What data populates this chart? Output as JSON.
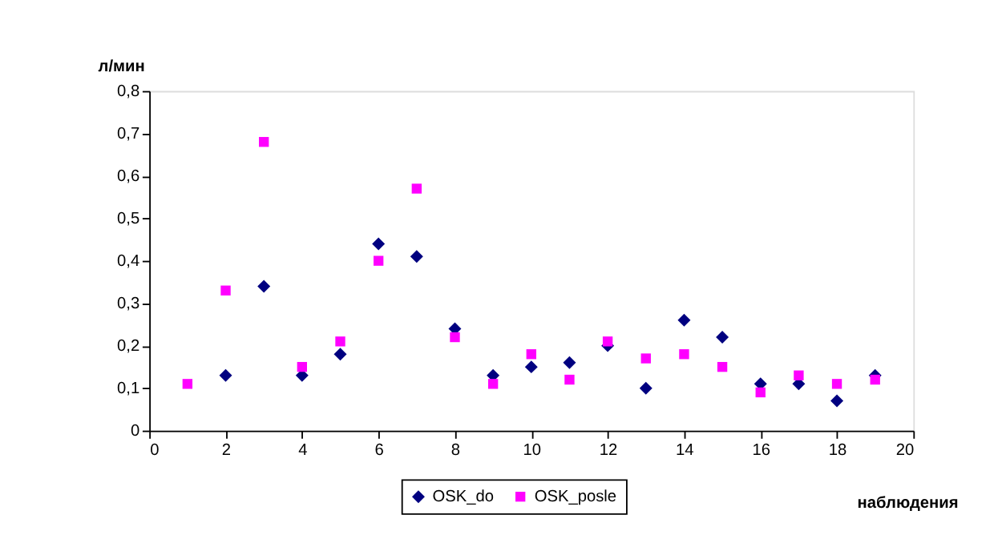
{
  "chart_data": {
    "type": "scatter",
    "xlabel": "наблюдения",
    "ylabel": "л/мин",
    "xlim": [
      0,
      20
    ],
    "xticks": [
      0,
      2,
      4,
      6,
      8,
      10,
      12,
      14,
      16,
      18,
      20
    ],
    "ylim": [
      0,
      0.8
    ],
    "yticks": [
      {
        "value": 0,
        "label": "0"
      },
      {
        "value": 0.1,
        "label": "0,1"
      },
      {
        "value": 0.2,
        "label": "0,2"
      },
      {
        "value": 0.3,
        "label": "0,3"
      },
      {
        "value": 0.4,
        "label": "0,4"
      },
      {
        "value": 0.5,
        "label": "0,5"
      },
      {
        "value": 0.6,
        "label": "0,6"
      },
      {
        "value": 0.7,
        "label": "0,7"
      },
      {
        "value": 0.8,
        "label": "0,8"
      }
    ],
    "grid": false,
    "legend": "bottom",
    "series": [
      {
        "name": "OSK_do",
        "color": "#000080",
        "marker": "diamond",
        "x": [
          2,
          3,
          4,
          5,
          6,
          7,
          8,
          9,
          10,
          11,
          12,
          13,
          14,
          15,
          16,
          17,
          18,
          19
        ],
        "values": [
          0.13,
          0.34,
          0.13,
          0.18,
          0.44,
          0.41,
          0.24,
          0.13,
          0.15,
          0.16,
          0.2,
          0.1,
          0.26,
          0.22,
          0.11,
          0.11,
          0.07,
          0.13
        ]
      },
      {
        "name": "OSK_posle",
        "color": "#ff00ff",
        "marker": "square",
        "x": [
          1,
          2,
          3,
          4,
          5,
          6,
          7,
          8,
          9,
          10,
          11,
          12,
          13,
          14,
          15,
          16,
          17,
          18,
          19
        ],
        "values": [
          0.11,
          0.33,
          0.68,
          0.15,
          0.21,
          0.4,
          0.57,
          0.22,
          0.11,
          0.18,
          0.12,
          0.21,
          0.17,
          0.18,
          0.15,
          0.09,
          0.13,
          0.11,
          0.12
        ]
      }
    ]
  }
}
